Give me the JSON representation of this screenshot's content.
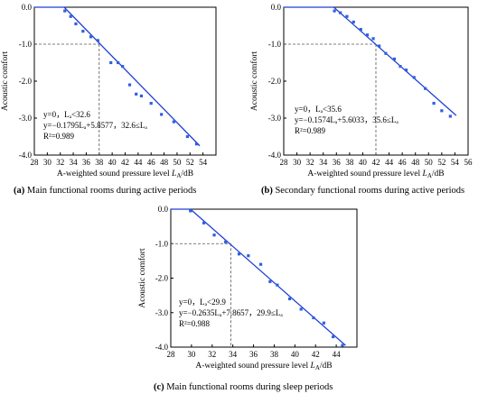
{
  "chart_data": [
    {
      "type": "scatter",
      "caption_letter": "(a)",
      "caption_text": " Main functional rooms during active periods",
      "xlabel_prefix": "A-weighted sound pressure level ",
      "xlabel_var": "L",
      "xlabel_sub": "A",
      "xlabel_unit": "/dB",
      "ylabel": "Acoustic comfort",
      "xlim": [
        28,
        56
      ],
      "ylim": [
        -4.0,
        0.0
      ],
      "x_ticks": [
        28,
        30,
        32,
        34,
        36,
        38,
        40,
        42,
        44,
        46,
        48,
        50,
        52,
        54
      ],
      "x_tick_labels": [
        "28",
        "30",
        "32",
        "34",
        "36",
        "38",
        "40",
        "42",
        "44",
        "46",
        "48",
        "50",
        "52",
        "54"
      ],
      "y_ticks": [
        0,
        -1,
        -2,
        -3,
        -4
      ],
      "y_tick_labels": [
        "0.0",
        "-1.0",
        "-2.0",
        "-3.0",
        "-4.0"
      ],
      "points": [
        [
          32.7,
          -0.1
        ],
        [
          33.6,
          -0.25
        ],
        [
          34.4,
          -0.45
        ],
        [
          35.5,
          -0.65
        ],
        [
          36.7,
          -0.8
        ],
        [
          37.8,
          -0.9
        ],
        [
          39.8,
          -1.5
        ],
        [
          40.9,
          -1.5
        ],
        [
          41.6,
          -1.6
        ],
        [
          42.7,
          -2.1
        ],
        [
          43.7,
          -2.35
        ],
        [
          44.5,
          -2.4
        ],
        [
          46.0,
          -2.6
        ],
        [
          47.6,
          -2.9
        ],
        [
          49.5,
          -3.1
        ],
        [
          51.6,
          -3.5
        ],
        [
          53.0,
          -3.7
        ]
      ],
      "fit_segments": [
        [
          [
            28,
            0
          ],
          [
            32.6,
            0
          ]
        ],
        [
          [
            32.6,
            -0.0
          ],
          [
            53.5,
            -3.75
          ]
        ]
      ],
      "ref_x": 38.0,
      "ref_y": -1.0,
      "equation_lines": [
        "y=0，Lₐ<32.6",
        "y=−0.1795Lₐ+5.8577，32.6≤Lₐ",
        "R²=0.989"
      ]
    },
    {
      "type": "scatter",
      "caption_letter": "(b)",
      "caption_text": " Secondary functional rooms during active periods",
      "xlabel_prefix": "A-weighted sound pressure level ",
      "xlabel_var": "L",
      "xlabel_sub": "A",
      "xlabel_unit": "/dB",
      "ylabel": "Acoustic comfort",
      "xlim": [
        28,
        56
      ],
      "ylim": [
        -4.0,
        0.0
      ],
      "x_ticks": [
        28,
        30,
        32,
        34,
        36,
        38,
        40,
        42,
        44,
        46,
        48,
        50,
        52,
        54,
        56
      ],
      "x_tick_labels": [
        "28",
        "30",
        "32",
        "34",
        "36",
        "38",
        "40",
        "42",
        "44",
        "46",
        "48",
        "50",
        "52",
        "54",
        "56"
      ],
      "y_ticks": [
        0,
        -1,
        -2,
        -3,
        -4
      ],
      "y_tick_labels": [
        "0.0",
        "-1.0",
        "-2.0",
        "-3.0",
        "-4.0"
      ],
      "points": [
        [
          35.7,
          -0.1
        ],
        [
          36.6,
          -0.15
        ],
        [
          37.6,
          -0.25
        ],
        [
          38.6,
          -0.4
        ],
        [
          39.7,
          -0.6
        ],
        [
          40.7,
          -0.75
        ],
        [
          41.6,
          -0.85
        ],
        [
          42.5,
          -1.05
        ],
        [
          43.5,
          -1.25
        ],
        [
          44.8,
          -1.4
        ],
        [
          45.7,
          -1.6
        ],
        [
          46.6,
          -1.7
        ],
        [
          47.8,
          -1.9
        ],
        [
          49.5,
          -2.2
        ],
        [
          50.8,
          -2.6
        ],
        [
          52.0,
          -2.8
        ],
        [
          53.3,
          -2.95
        ]
      ],
      "fit_segments": [
        [
          [
            28,
            0
          ],
          [
            35.6,
            0
          ]
        ],
        [
          [
            35.6,
            -0.0
          ],
          [
            54.2,
            -2.93
          ]
        ]
      ],
      "ref_x": 42.0,
      "ref_y": -1.0,
      "equation_lines": [
        "y=0，Lₐ<35.6",
        "y=−0.1574Lₐ+5.6033，35.6≤Lₐ",
        "R²=0.989"
      ]
    },
    {
      "type": "scatter",
      "caption_letter": "(c)",
      "caption_text": " Main functional rooms during sleep periods",
      "xlabel_prefix": "A-weighted sound pressure level ",
      "xlabel_var": "L",
      "xlabel_sub": "A",
      "xlabel_unit": "/dB",
      "ylabel": "Acoustic comfort",
      "xlim": [
        28,
        46
      ],
      "ylim": [
        -4.0,
        0.0
      ],
      "x_ticks": [
        28,
        30,
        32,
        34,
        36,
        38,
        40,
        42,
        44
      ],
      "x_tick_labels": [
        "28",
        "30",
        "32",
        "34",
        "36",
        "38",
        "40",
        "42",
        "44"
      ],
      "y_ticks": [
        0,
        -1,
        -2,
        -3,
        -4
      ],
      "y_tick_labels": [
        "0.0",
        "-1.0",
        "-2.0",
        "-3.0",
        "-4.0"
      ],
      "points": [
        [
          29.9,
          -0.05
        ],
        [
          31.2,
          -0.4
        ],
        [
          32.2,
          -0.75
        ],
        [
          33.3,
          -0.95
        ],
        [
          34.6,
          -1.3
        ],
        [
          35.5,
          -1.35
        ],
        [
          36.7,
          -1.6
        ],
        [
          37.6,
          -2.1
        ],
        [
          38.3,
          -2.2
        ],
        [
          39.5,
          -2.6
        ],
        [
          40.6,
          -2.9
        ],
        [
          41.8,
          -3.15
        ],
        [
          42.8,
          -3.3
        ],
        [
          43.7,
          -3.7
        ],
        [
          44.6,
          -3.95
        ]
      ],
      "fit_segments": [
        [
          [
            28,
            0
          ],
          [
            29.9,
            0
          ]
        ],
        [
          [
            29.9,
            -0.0
          ],
          [
            44.9,
            -3.95
          ]
        ]
      ],
      "ref_x": 33.8,
      "ref_y": -1.0,
      "equation_lines": [
        "y=0，Lₐ<29.9",
        "y=−0.2635Lₐ+7.8657，29.9≤Lₐ",
        "R²=0.988"
      ]
    }
  ],
  "colors": {
    "line": "#1f3fd6",
    "points": "#2f5fe0",
    "axes": "#000000",
    "ref": "#555555"
  }
}
